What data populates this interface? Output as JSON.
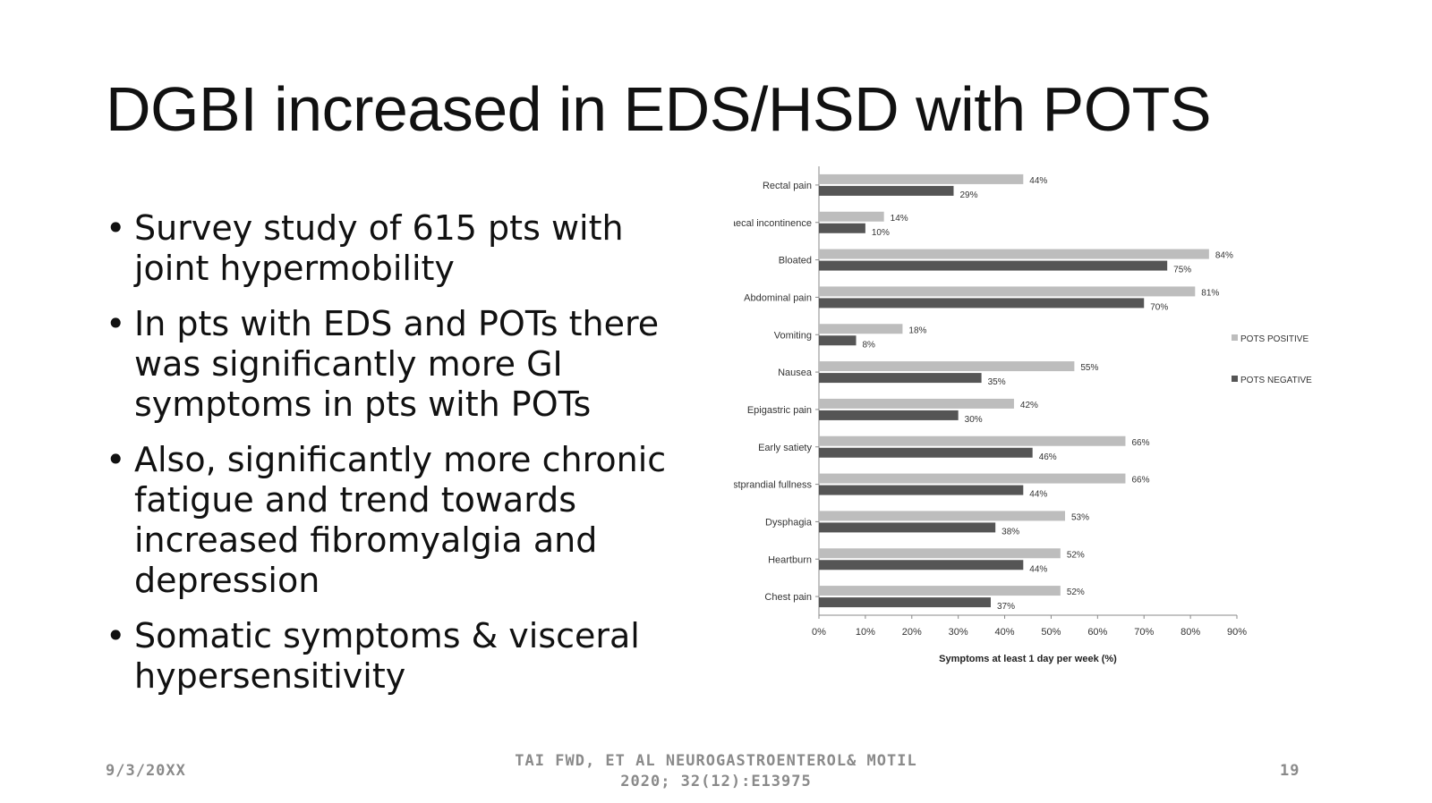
{
  "slide": {
    "title": "DGBI increased in EDS/HSD with POTS",
    "bullets": [
      "Survey study of 615 pts with joint hypermobility",
      "In pts with EDS and POTs there was significantly more GI symptoms in pts with POTs",
      "Also, significantly more chronic fatigue and trend towards increased fibromyalgia and depression",
      "Somatic symptoms & visceral hypersensitivity"
    ]
  },
  "footer": {
    "date": "9/3/20XX",
    "citation_line1": "TAI FWD, ET AL NEUROGASTROENTEROL& MOTIL",
    "citation_line2": "2020; 32(12):E13975",
    "page_number": "19"
  },
  "chart_data": {
    "type": "bar",
    "orientation": "horizontal",
    "title": "",
    "xlabel": "Symptoms at least 1 day per week (%)",
    "ylabel": "",
    "xlim": [
      0,
      90
    ],
    "xticks": [
      0,
      10,
      20,
      30,
      40,
      50,
      60,
      70,
      80,
      90
    ],
    "tick_suffix": "%",
    "legend_position": "right",
    "categories": [
      "Rectal pain",
      "Faecal incontinence",
      "Bloated",
      "Abdominal pain",
      "Vomiting",
      "Nausea",
      "Epigastric pain",
      "Early satiety",
      "Postprandial fullness",
      "Dysphagia",
      "Heartburn",
      "Chest pain"
    ],
    "series": [
      {
        "name": "POTS POSITIVE",
        "color": "#bdbdbd",
        "values": [
          44,
          14,
          84,
          81,
          18,
          55,
          42,
          66,
          66,
          53,
          52,
          52
        ]
      },
      {
        "name": "POTS NEGATIVE",
        "color": "#555555",
        "values": [
          29,
          10,
          75,
          70,
          8,
          35,
          30,
          46,
          44,
          38,
          44,
          37
        ]
      }
    ]
  }
}
